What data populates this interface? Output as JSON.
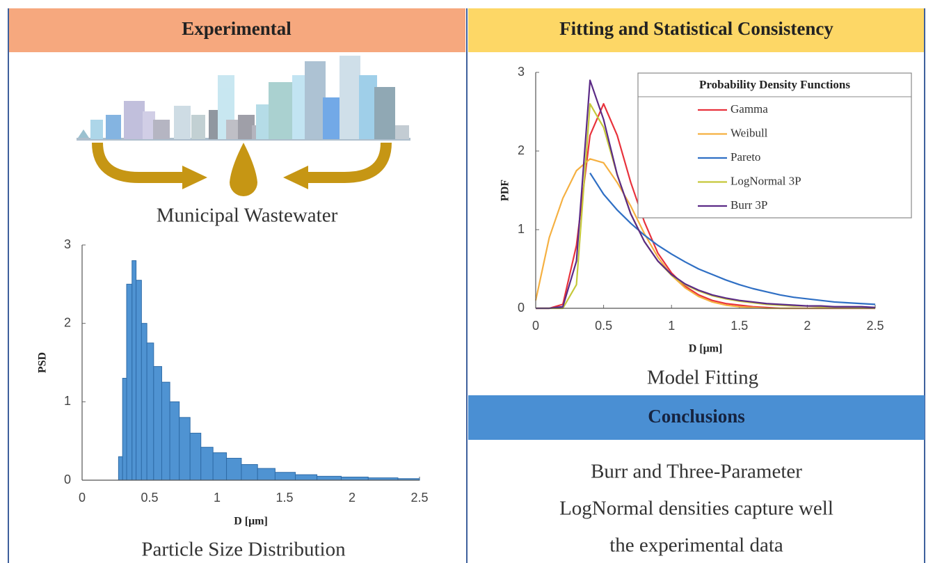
{
  "left_header": "Experimental",
  "right_header": "Fitting and Statistical Consistency",
  "city_caption": "Municipal Wastewater",
  "conclusions_header": "Conclusions",
  "conclusions_text": [
    "Burr and Three-Parameter",
    "LogNormal densities capture well",
    "the experimental data"
  ],
  "chart_data": [
    {
      "type": "histogram",
      "caption": "Particle Size Distribution",
      "xlabel": "D [μm]",
      "ylabel": "PSD",
      "bins": [
        0.27,
        0.3,
        0.33,
        0.37,
        0.4,
        0.44,
        0.48,
        0.53,
        0.59,
        0.65,
        0.72,
        0.8,
        0.88,
        0.97,
        1.07,
        1.18,
        1.3,
        1.43,
        1.58,
        1.74,
        1.92,
        2.12,
        2.34,
        2.5
      ],
      "values": [
        0.3,
        1.3,
        2.5,
        2.8,
        2.55,
        2.0,
        1.75,
        1.45,
        1.25,
        1.0,
        0.8,
        0.6,
        0.42,
        0.35,
        0.28,
        0.2,
        0.15,
        0.1,
        0.07,
        0.05,
        0.04,
        0.03,
        0.02
      ],
      "color": "#4f93d2",
      "xlim": [
        0,
        2.5
      ],
      "xticks": [
        0,
        0.5,
        1,
        1.5,
        2,
        2.5
      ],
      "ylim": [
        0,
        3
      ],
      "yticks": [
        0,
        1,
        2,
        3
      ],
      "grid": false
    },
    {
      "type": "line",
      "caption": "Model Fitting",
      "xlabel": "D [μm]",
      "ylabel": "PDF",
      "legend_title": "Probability Density Functions",
      "legend": "upper right",
      "x": [
        0,
        0.1,
        0.2,
        0.3,
        0.4,
        0.5,
        0.6,
        0.7,
        0.8,
        0.9,
        1.0,
        1.1,
        1.2,
        1.3,
        1.4,
        1.5,
        1.6,
        1.7,
        1.8,
        1.9,
        2.0,
        2.1,
        2.2,
        2.3,
        2.4,
        2.5
      ],
      "series": [
        {
          "name": "Gamma",
          "color": "#e8323c",
          "values": [
            0,
            0,
            0.05,
            0.8,
            2.2,
            2.6,
            2.2,
            1.6,
            1.1,
            0.7,
            0.45,
            0.28,
            0.17,
            0.1,
            0.06,
            0.04,
            0.02,
            0.01,
            0,
            0,
            0,
            0,
            0,
            0,
            0,
            0
          ]
        },
        {
          "name": "Weibull",
          "color": "#f5b041",
          "values": [
            0.1,
            0.9,
            1.4,
            1.75,
            1.9,
            1.85,
            1.6,
            1.3,
            0.95,
            0.65,
            0.42,
            0.26,
            0.15,
            0.08,
            0.04,
            0.02,
            0.01,
            0,
            0,
            0,
            0,
            0,
            0,
            0,
            0,
            0
          ]
        },
        {
          "name": "Pareto",
          "color": "#2f6fc4",
          "values": [
            null,
            null,
            null,
            null,
            1.72,
            1.45,
            1.25,
            1.08,
            0.93,
            0.8,
            0.69,
            0.59,
            0.5,
            0.43,
            0.36,
            0.3,
            0.25,
            0.21,
            0.17,
            0.14,
            0.12,
            0.1,
            0.08,
            0.07,
            0.06,
            0.05
          ]
        },
        {
          "name": "LogNormal 3P",
          "color": "#c5c83a",
          "values": [
            0,
            0,
            0,
            0.3,
            2.6,
            2.3,
            1.7,
            1.2,
            0.85,
            0.6,
            0.42,
            0.3,
            0.22,
            0.16,
            0.12,
            0.09,
            0.07,
            0.05,
            0.04,
            0.03,
            0.03,
            0.02,
            0.02,
            0.02,
            0.01,
            0.01
          ]
        },
        {
          "name": "Burr 3P",
          "color": "#5b2a86",
          "values": [
            0,
            0,
            0.02,
            0.6,
            2.9,
            2.4,
            1.7,
            1.2,
            0.85,
            0.6,
            0.43,
            0.31,
            0.23,
            0.17,
            0.13,
            0.1,
            0.08,
            0.06,
            0.05,
            0.04,
            0.03,
            0.03,
            0.02,
            0.02,
            0.02,
            0.01
          ]
        }
      ],
      "xlim": [
        0,
        2.5
      ],
      "xticks": [
        0,
        0.5,
        1,
        1.5,
        2,
        2.5
      ],
      "ylim": [
        0,
        3
      ],
      "yticks": [
        0,
        1,
        2,
        3
      ],
      "grid": false
    }
  ]
}
